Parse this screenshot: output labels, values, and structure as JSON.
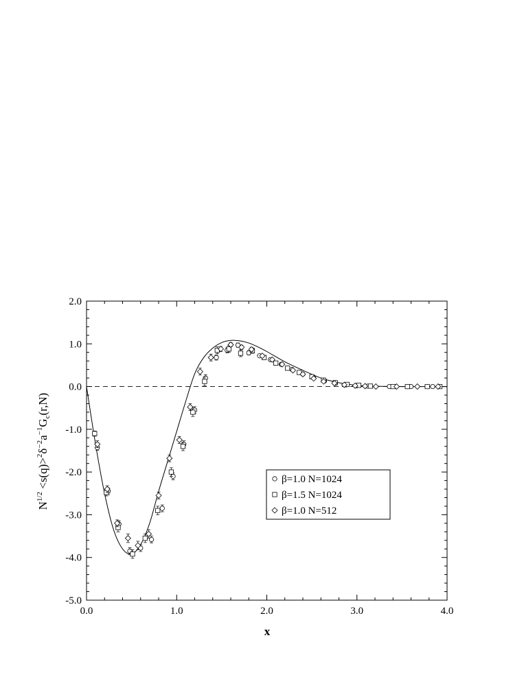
{
  "chart_data": {
    "type": "scatter",
    "title": "",
    "xlabel": "x",
    "ylabel": "N^{1/2} <s(q)>^{2} δ^{-2} a^{-1} G_c(r,N)",
    "xlim": [
      0.0,
      4.0
    ],
    "ylim": [
      -5.0,
      2.0
    ],
    "x_ticks": [
      "0.0",
      "1.0",
      "2.0",
      "3.0",
      "4.0"
    ],
    "y_ticks": [
      "2.0",
      "1.0",
      "0.0",
      "-1.0",
      "-2.0",
      "-3.0",
      "-4.0",
      "-5.0"
    ],
    "grid": false,
    "reference_line": {
      "y": 0.0,
      "style": "dashed"
    },
    "legend": {
      "placement": "lower-right",
      "entries": [
        {
          "label": "β=1.0 N=1024",
          "marker": "circle"
        },
        {
          "label": "β=1.5 N=1024",
          "marker": "square"
        },
        {
          "label": "β=1.0 N=512",
          "marker": "diamond"
        }
      ]
    },
    "curve": {
      "x": [
        0.0,
        0.1,
        0.2,
        0.3,
        0.4,
        0.5,
        0.6,
        0.7,
        0.8,
        0.9,
        1.0,
        1.1,
        1.2,
        1.3,
        1.4,
        1.5,
        1.6,
        1.7,
        1.8,
        1.9,
        2.0,
        2.2,
        2.4,
        2.6,
        2.8,
        3.0,
        3.2,
        3.5,
        4.0
      ],
      "y": [
        0.0,
        -1.35,
        -2.5,
        -3.35,
        -3.8,
        -3.92,
        -3.7,
        -3.2,
        -2.45,
        -1.75,
        -1.05,
        -0.35,
        0.3,
        0.68,
        0.9,
        1.03,
        1.08,
        1.07,
        1.02,
        0.93,
        0.82,
        0.58,
        0.38,
        0.2,
        0.09,
        0.03,
        0.01,
        0.0,
        0.0
      ]
    },
    "series": [
      {
        "name": "β=1.0 N=1024",
        "marker": "circle",
        "points": [
          [
            0.12,
            -1.43,
            0.06
          ],
          [
            0.24,
            -2.45,
            0.08
          ],
          [
            0.36,
            -3.22,
            0.08
          ],
          [
            0.48,
            -3.85,
            0.08
          ],
          [
            0.6,
            -3.78,
            0.08
          ],
          [
            0.72,
            -3.58,
            0.08
          ],
          [
            0.84,
            -2.85,
            0.08
          ],
          [
            0.96,
            -2.1,
            0.08
          ],
          [
            1.08,
            -1.35,
            0.08
          ],
          [
            1.2,
            -0.55,
            0.08
          ],
          [
            1.32,
            0.2,
            0.08
          ],
          [
            1.44,
            0.68,
            0.06
          ],
          [
            1.56,
            0.85,
            0.06
          ],
          [
            1.68,
            0.97,
            0.05
          ],
          [
            1.8,
            0.79,
            0.05
          ],
          [
            1.92,
            0.72,
            0.04
          ],
          [
            2.04,
            0.63,
            0.03
          ],
          [
            2.16,
            0.52,
            0.02
          ],
          [
            2.28,
            0.4,
            0.02
          ],
          [
            2.4,
            0.29,
            0.02
          ],
          [
            2.52,
            0.2,
            0.02
          ],
          [
            2.64,
            0.13,
            0.01
          ],
          [
            2.76,
            0.08,
            0.01
          ],
          [
            2.88,
            0.04,
            0.01
          ],
          [
            3.0,
            0.02,
            0.01
          ],
          [
            3.12,
            0.01,
            0
          ],
          [
            3.36,
            0.0,
            0
          ],
          [
            3.6,
            0.0,
            0
          ],
          [
            3.84,
            0.0,
            0
          ]
        ]
      },
      {
        "name": "β=1.5 N=1024",
        "marker": "square",
        "points": [
          [
            0.09,
            -1.1,
            0.06
          ],
          [
            0.22,
            -2.48,
            0.08
          ],
          [
            0.35,
            -3.3,
            0.1
          ],
          [
            0.51,
            -3.92,
            0.1
          ],
          [
            0.65,
            -3.55,
            0.1
          ],
          [
            0.79,
            -2.9,
            0.1
          ],
          [
            0.94,
            -2.0,
            0.1
          ],
          [
            1.07,
            -1.4,
            0.1
          ],
          [
            1.18,
            -0.6,
            0.1
          ],
          [
            1.31,
            0.12,
            0.1
          ],
          [
            1.45,
            0.85,
            0.08
          ],
          [
            1.58,
            0.88,
            0.08
          ],
          [
            1.71,
            0.78,
            0.08
          ],
          [
            1.84,
            0.84,
            0.06
          ],
          [
            1.97,
            0.68,
            0.04
          ],
          [
            2.1,
            0.55,
            0.03
          ],
          [
            2.23,
            0.43,
            0.03
          ],
          [
            2.36,
            0.33,
            0.02
          ],
          [
            2.5,
            0.23,
            0.02
          ],
          [
            2.63,
            0.15,
            0.02
          ],
          [
            2.76,
            0.09,
            0.01
          ],
          [
            2.89,
            0.05,
            0.01
          ],
          [
            3.02,
            0.03,
            0
          ],
          [
            3.15,
            0.01,
            0
          ],
          [
            3.4,
            0.0,
            0
          ],
          [
            3.56,
            0.0,
            0
          ],
          [
            3.78,
            0.0,
            0
          ],
          [
            3.92,
            0.0,
            0
          ]
        ]
      },
      {
        "name": "β=1.0 N=512",
        "marker": "diamond",
        "points": [
          [
            0.12,
            -1.35,
            0.08
          ],
          [
            0.23,
            -2.4,
            0.08
          ],
          [
            0.34,
            -3.2,
            0.08
          ],
          [
            0.46,
            -3.55,
            0.1
          ],
          [
            0.57,
            -3.72,
            0.1
          ],
          [
            0.69,
            -3.45,
            0.1
          ],
          [
            0.8,
            -2.55,
            0.08
          ],
          [
            0.92,
            -1.68,
            0.08
          ],
          [
            1.03,
            -1.25,
            0.08
          ],
          [
            1.15,
            -0.48,
            0.08
          ],
          [
            1.26,
            0.35,
            0.08
          ],
          [
            1.38,
            0.68,
            0.08
          ],
          [
            1.49,
            0.88,
            0.06
          ],
          [
            1.6,
            0.98,
            0.05
          ],
          [
            1.72,
            0.92,
            0.05
          ],
          [
            1.83,
            0.87,
            0.05
          ],
          [
            1.95,
            0.72,
            0.04
          ],
          [
            2.06,
            0.63,
            0.03
          ],
          [
            2.17,
            0.52,
            0.02
          ],
          [
            2.29,
            0.38,
            0.02
          ],
          [
            2.4,
            0.29,
            0.02
          ],
          [
            2.52,
            0.19,
            0.02
          ],
          [
            2.63,
            0.12,
            0.01
          ],
          [
            2.75,
            0.08,
            0.01
          ],
          [
            2.86,
            0.04,
            0.01
          ],
          [
            2.98,
            0.02,
            0
          ],
          [
            3.09,
            0.01,
            0
          ],
          [
            3.21,
            0.0,
            0
          ],
          [
            3.44,
            0.0,
            0
          ],
          [
            3.67,
            0.0,
            0
          ],
          [
            3.9,
            0.0,
            0
          ]
        ]
      }
    ]
  }
}
